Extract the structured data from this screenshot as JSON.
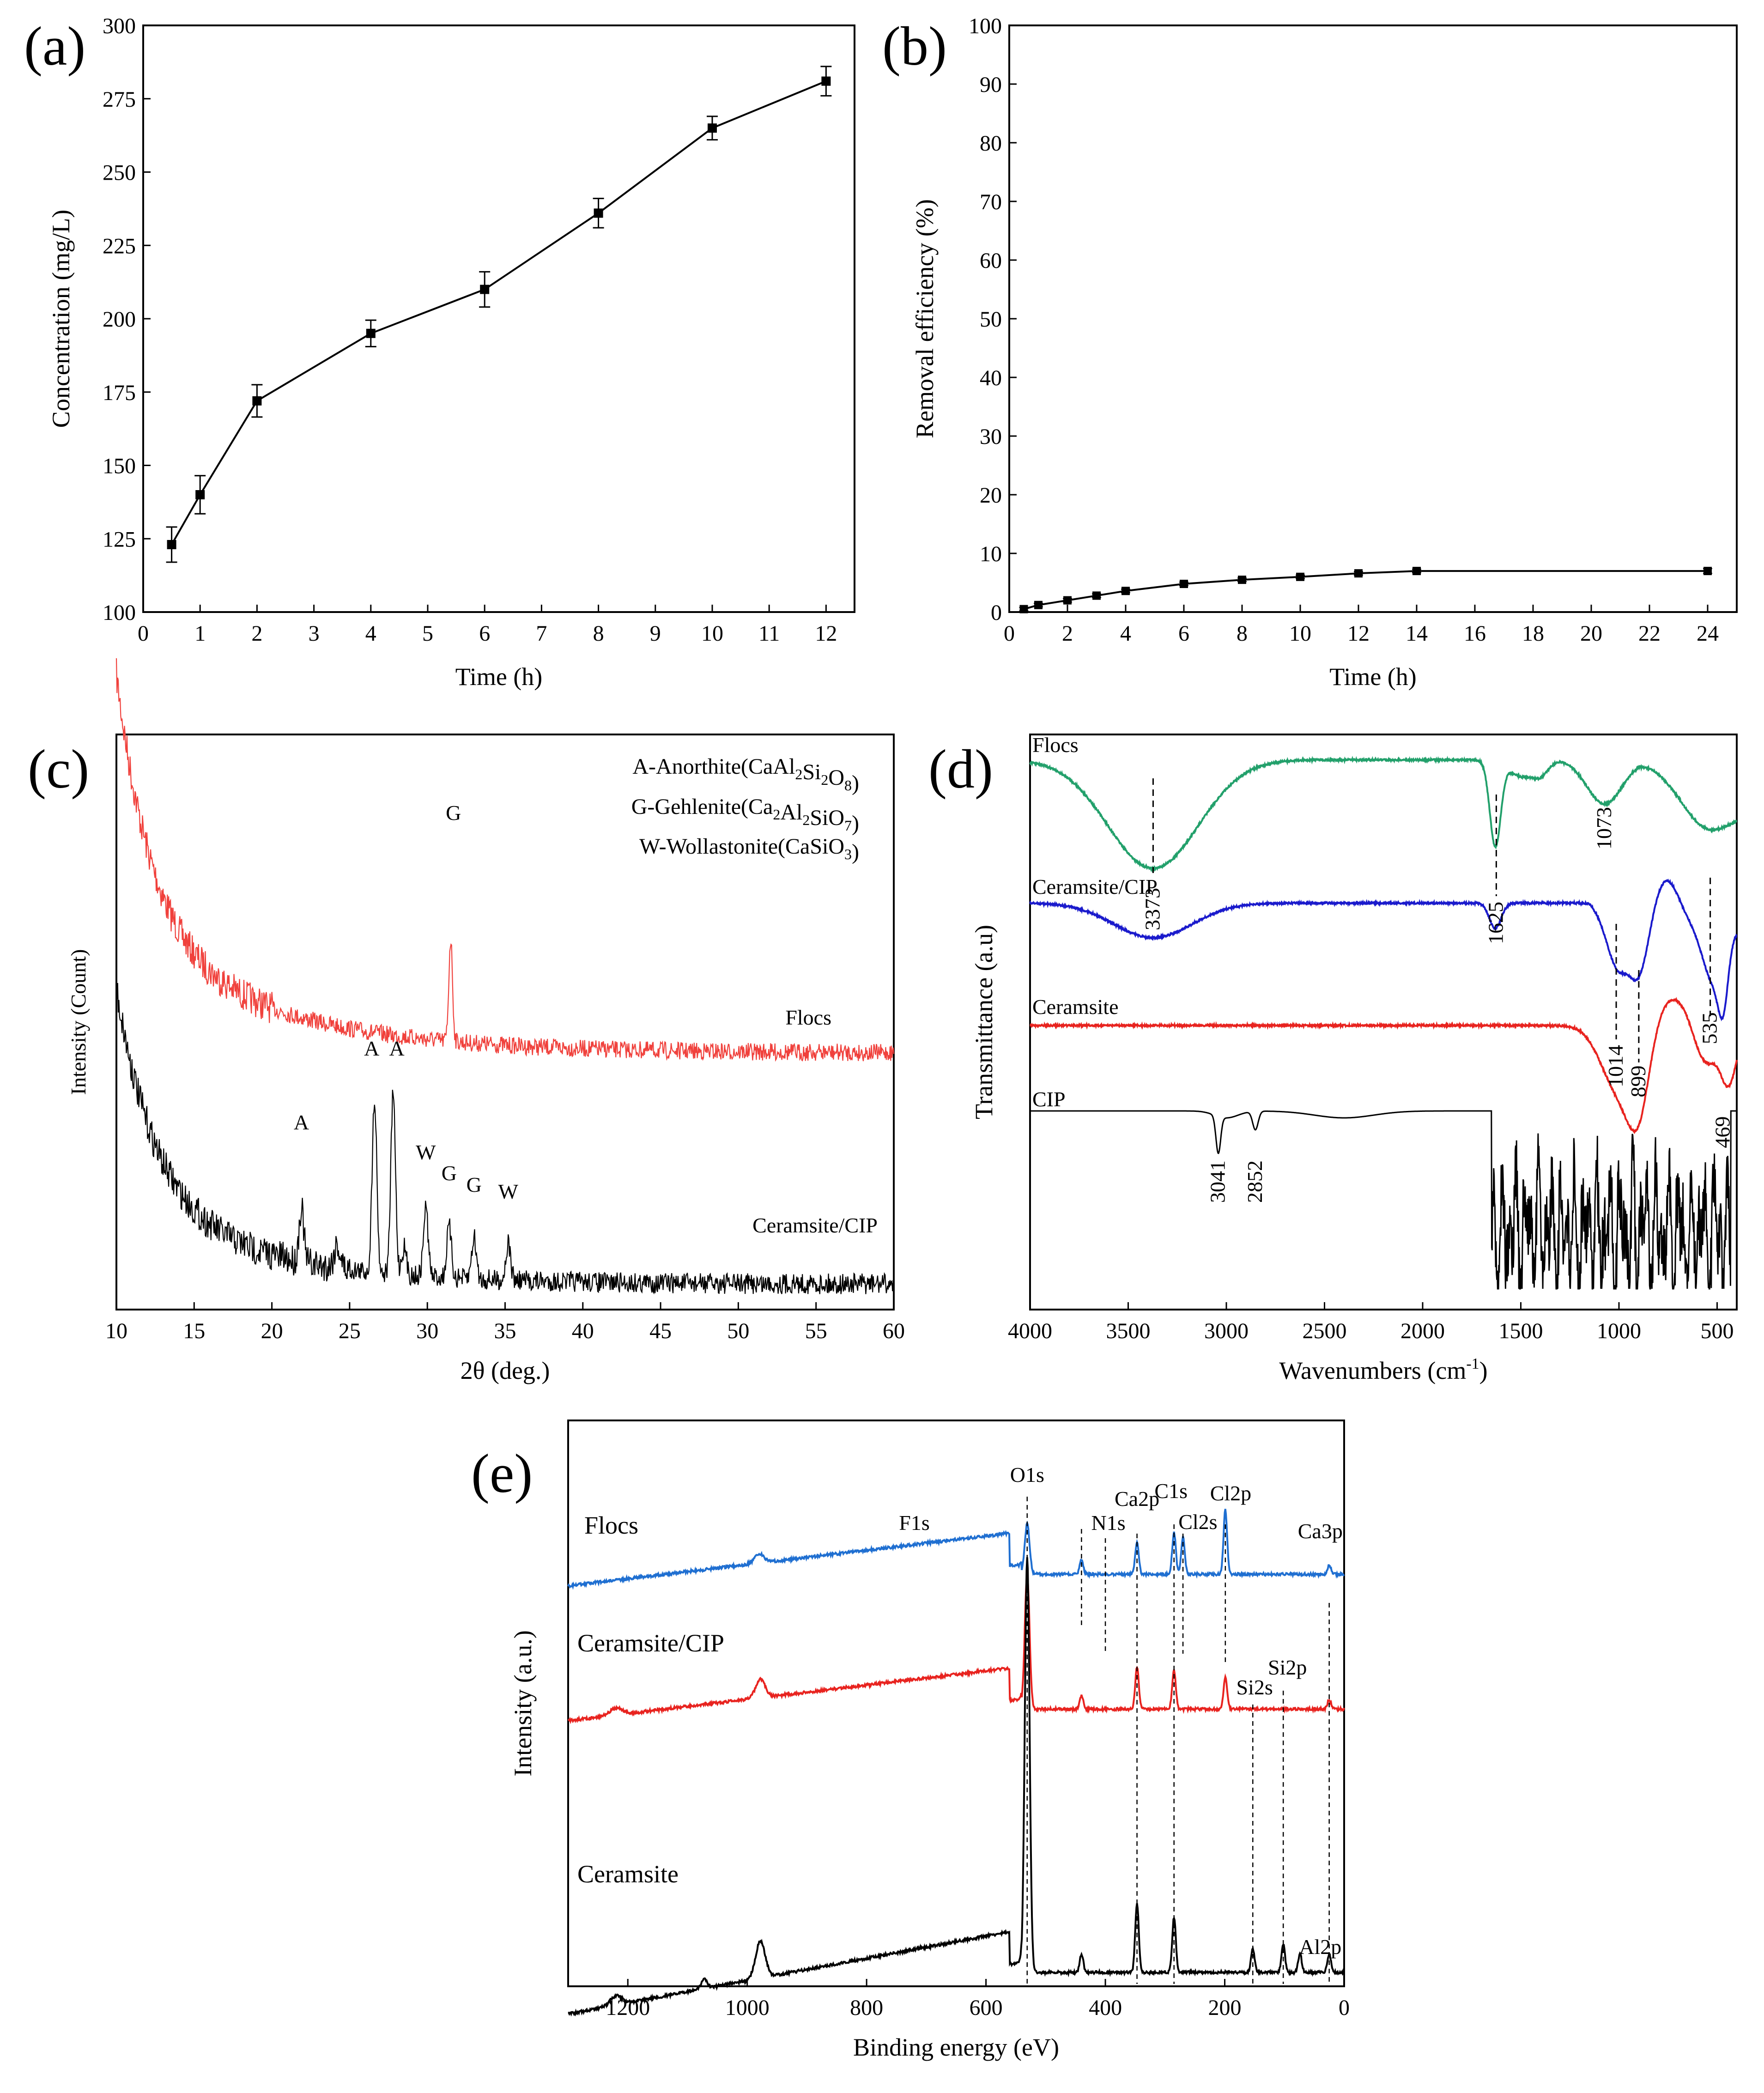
{
  "panels": [
    {
      "id": "a",
      "letter": "(a)"
    },
    {
      "id": "b",
      "letter": "(b)"
    },
    {
      "id": "c",
      "letter": "(c)"
    },
    {
      "id": "d",
      "letter": "(d)"
    },
    {
      "id": "e",
      "letter": "(e)"
    }
  ],
  "chart_data": [
    {
      "panel": "(a)",
      "type": "line",
      "title": "",
      "xlabel": "Time (h)",
      "ylabel": "Concentration (mg/L)",
      "xlim": [
        0,
        12.5
      ],
      "ylim": [
        100,
        300
      ],
      "xticks": [
        0,
        1,
        2,
        3,
        4,
        5,
        6,
        7,
        8,
        9,
        10,
        11,
        12
      ],
      "yticks": [
        100,
        125,
        150,
        175,
        200,
        225,
        250,
        275,
        300
      ],
      "x": [
        0.5,
        1,
        2,
        4,
        6,
        8,
        10,
        12
      ],
      "y": [
        123,
        140,
        172,
        195,
        210,
        236,
        265,
        281
      ],
      "err": [
        6,
        6.5,
        5.5,
        4.5,
        6,
        5,
        4,
        5
      ],
      "marker": "square",
      "color": "#000000"
    },
    {
      "panel": "(b)",
      "type": "line",
      "title": "",
      "xlabel": "Time (h)",
      "ylabel": "Removal efficiency (%)",
      "xlim": [
        0,
        25
      ],
      "ylim": [
        0,
        100
      ],
      "xticks": [
        0,
        2,
        4,
        6,
        8,
        10,
        12,
        14,
        16,
        18,
        20,
        22,
        24
      ],
      "yticks": [
        0,
        10,
        20,
        30,
        40,
        50,
        60,
        70,
        80,
        90,
        100
      ],
      "x": [
        0.5,
        1,
        2,
        3,
        4,
        6,
        8,
        10,
        12,
        14,
        24
      ],
      "y": [
        0.5,
        1.2,
        2.0,
        2.8,
        3.6,
        4.8,
        5.5,
        6.0,
        6.6,
        7.0,
        7.0
      ],
      "err": [
        0.3,
        0.3,
        0.3,
        0.3,
        0.3,
        0.3,
        0.3,
        0.3,
        0.3,
        0.3,
        0.4
      ],
      "marker": "square",
      "color": "#000000"
    },
    {
      "panel": "(c)",
      "type": "line",
      "title": "",
      "xlabel": "2θ (deg.)",
      "ylabel": "Intensity (Count)",
      "xlim": [
        10,
        60
      ],
      "xticks": [
        10,
        15,
        20,
        25,
        30,
        35,
        40,
        45,
        50,
        55,
        60
      ],
      "legend_position": "top-right",
      "legend": [
        {
          "prefix": "A-Anorthite(CaAl",
          "s1": "2",
          "mid1": "Si",
          "s2": "2",
          "mid2": "O",
          "s3": "8",
          "suffix": ")"
        },
        {
          "prefix": "G-Gehlenite(Ca",
          "s1": "2",
          "mid1": "Al",
          "s2": "2",
          "mid2": "SiO",
          "s3": "7",
          "suffix": ")"
        },
        {
          "prefix": "W-Wollastonite(CaSiO",
          "s1": "3",
          "mid1": "",
          "s2": "",
          "mid2": "",
          "s3": "",
          "suffix": ")"
        }
      ],
      "series": [
        {
          "name": "Flocs",
          "color": "#f0413c",
          "peaks": [
            {
              "x": 31.5,
              "label": "G"
            }
          ]
        },
        {
          "name": "Ceramsite/CIP",
          "color": "#000000",
          "peaks": [
            {
              "x": 21.9,
              "label": "A"
            },
            {
              "x": 26.6,
              "label": "A"
            },
            {
              "x": 27.8,
              "label": "A"
            },
            {
              "x": 29.9,
              "label": "W"
            },
            {
              "x": 31.4,
              "label": "G"
            },
            {
              "x": 33.0,
              "label": "G"
            },
            {
              "x": 35.2,
              "label": "W"
            }
          ]
        }
      ]
    },
    {
      "panel": "(d)",
      "type": "line",
      "title": "",
      "xlabel": "Wavenumbers (cm",
      "xlabel_sup": "-1",
      "xlabel_end": ")",
      "ylabel": "Transmittance (a.u)",
      "xlim": [
        4000,
        400
      ],
      "xticks": [
        4000,
        3500,
        3000,
        2500,
        2000,
        1500,
        1000,
        500
      ],
      "series": [
        {
          "name": "Flocs",
          "color": "#22a06b"
        },
        {
          "name": "Ceramsite/CIP",
          "color": "#1a1acc"
        },
        {
          "name": "Ceramsite",
          "color": "#e8231f"
        },
        {
          "name": "CIP",
          "color": "#000000"
        }
      ],
      "annotations": [
        "3373",
        "1625",
        "1073",
        "1014",
        "899",
        "535",
        "469",
        "3041",
        "2852"
      ]
    },
    {
      "panel": "(e)",
      "type": "line",
      "title": "",
      "xlabel": "Binding energy (eV)",
      "ylabel": "Intensity (a.u.)",
      "xlim": [
        1300,
        0
      ],
      "xticks": [
        1200,
        1000,
        800,
        600,
        400,
        200,
        0
      ],
      "series": [
        {
          "name": "Flocs",
          "color": "#1f6fd1"
        },
        {
          "name": "Ceramsite/CIP",
          "color": "#e8231f"
        },
        {
          "name": "Ceramsite",
          "color": "#000000"
        }
      ],
      "peak_labels": [
        "O1s",
        "F1s",
        "N1s",
        "Ca2p",
        "C1s",
        "Cl2s",
        "Cl2p",
        "Ca3p",
        "Si2s",
        "Si2p",
        "Al2p"
      ]
    }
  ]
}
